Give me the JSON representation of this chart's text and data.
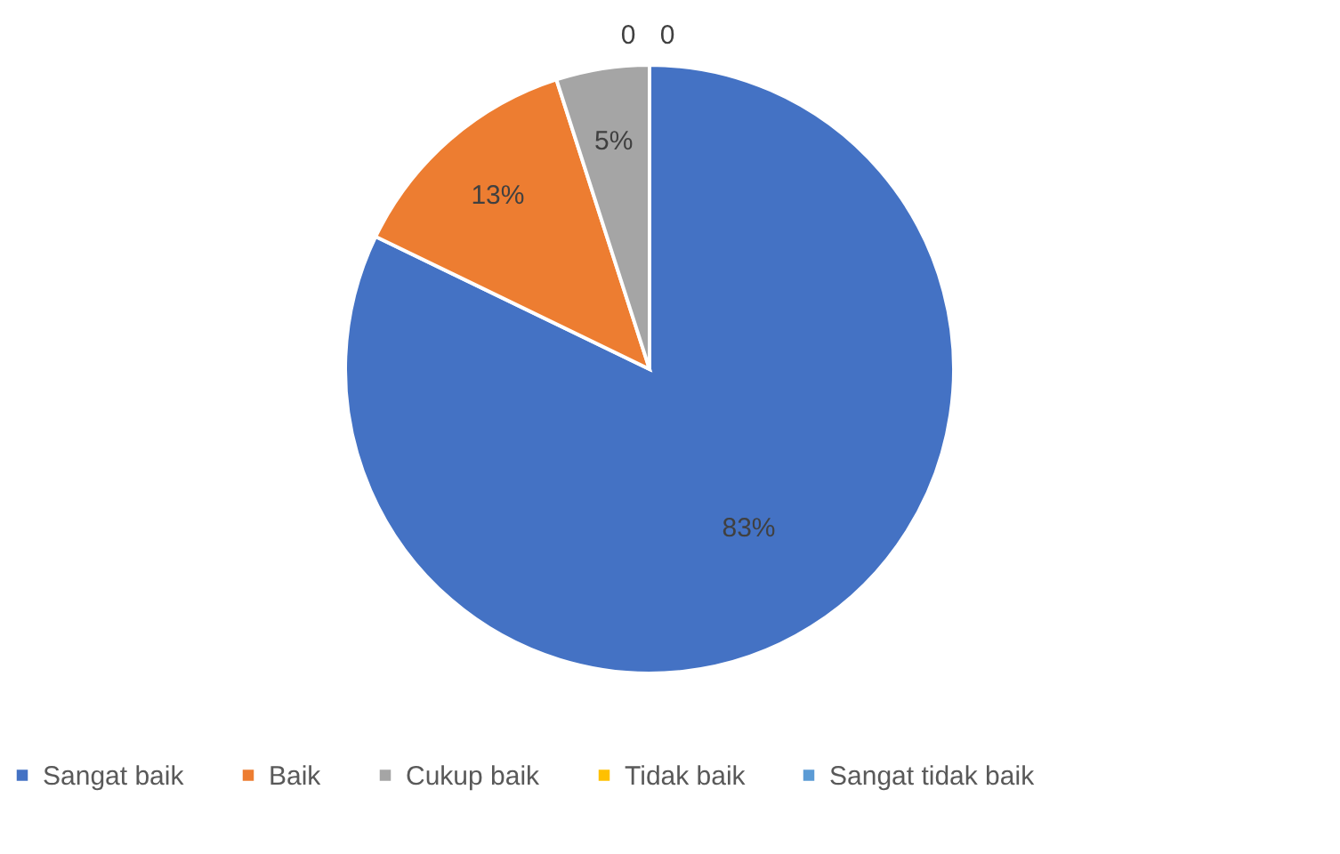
{
  "chart_data": {
    "type": "pie",
    "categories": [
      "Sangat baik",
      "Baik",
      "Cukup baik",
      "Tidak baik",
      "Sangat tidak baik"
    ],
    "values": [
      83,
      13,
      5,
      0,
      0
    ],
    "colors": [
      "#4472c4",
      "#ed7d31",
      "#a5a5a5",
      "#ffc000",
      "#5b9bd5"
    ],
    "value_labels": [
      "83%",
      "13%",
      "5%",
      "0",
      "0"
    ],
    "legend": "bottom"
  }
}
